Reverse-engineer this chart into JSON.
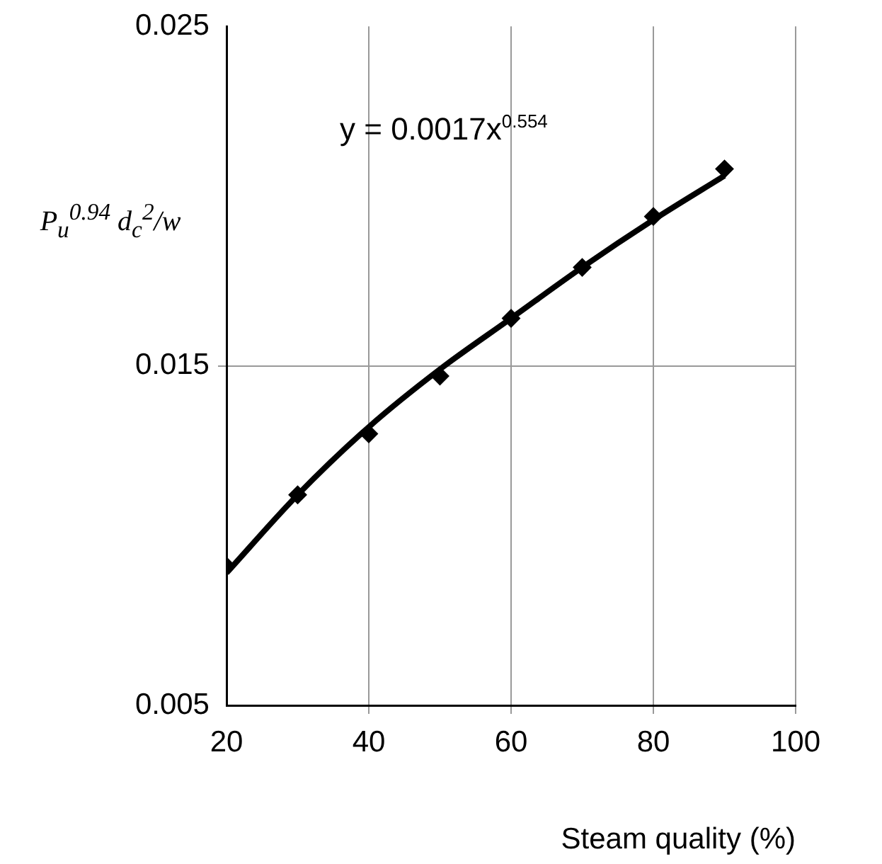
{
  "chart_data": {
    "type": "scatter",
    "xlabel": "Steam quality (%)",
    "ylabel": "P$_{u}$$^{0.94}$ d$_{c}$$^{2}$/w",
    "annotations": [
      "y = 0.0017x$^{0.554}$"
    ],
    "x": [
      20,
      30,
      40,
      50,
      60,
      70,
      80,
      90
    ],
    "series": [
      {
        "color": "#000000",
        "marker": "diamond",
        "values": [
          0.0091,
          0.0112,
          0.013,
          0.0147,
          0.0164,
          0.0179,
          0.0194,
          0.0208
        ]
      },
      {
        "type": "line",
        "color": "#000000",
        "marker": "none",
        "x": [
          20,
          30,
          40,
          50,
          60,
          70,
          80,
          90
        ],
        "values": [
          0.0089,
          0.0112,
          0.0132,
          0.0149,
          0.0164,
          0.0179,
          0.0193,
          0.0206
        ]
      }
    ],
    "xlim": [
      20,
      100
    ],
    "xticks": [
      20,
      40,
      60,
      80,
      100
    ],
    "ylim": [
      0.005,
      0.025
    ],
    "yticks": [
      0.005,
      0.015,
      0.025
    ],
    "grid": true,
    "legend": false
  }
}
